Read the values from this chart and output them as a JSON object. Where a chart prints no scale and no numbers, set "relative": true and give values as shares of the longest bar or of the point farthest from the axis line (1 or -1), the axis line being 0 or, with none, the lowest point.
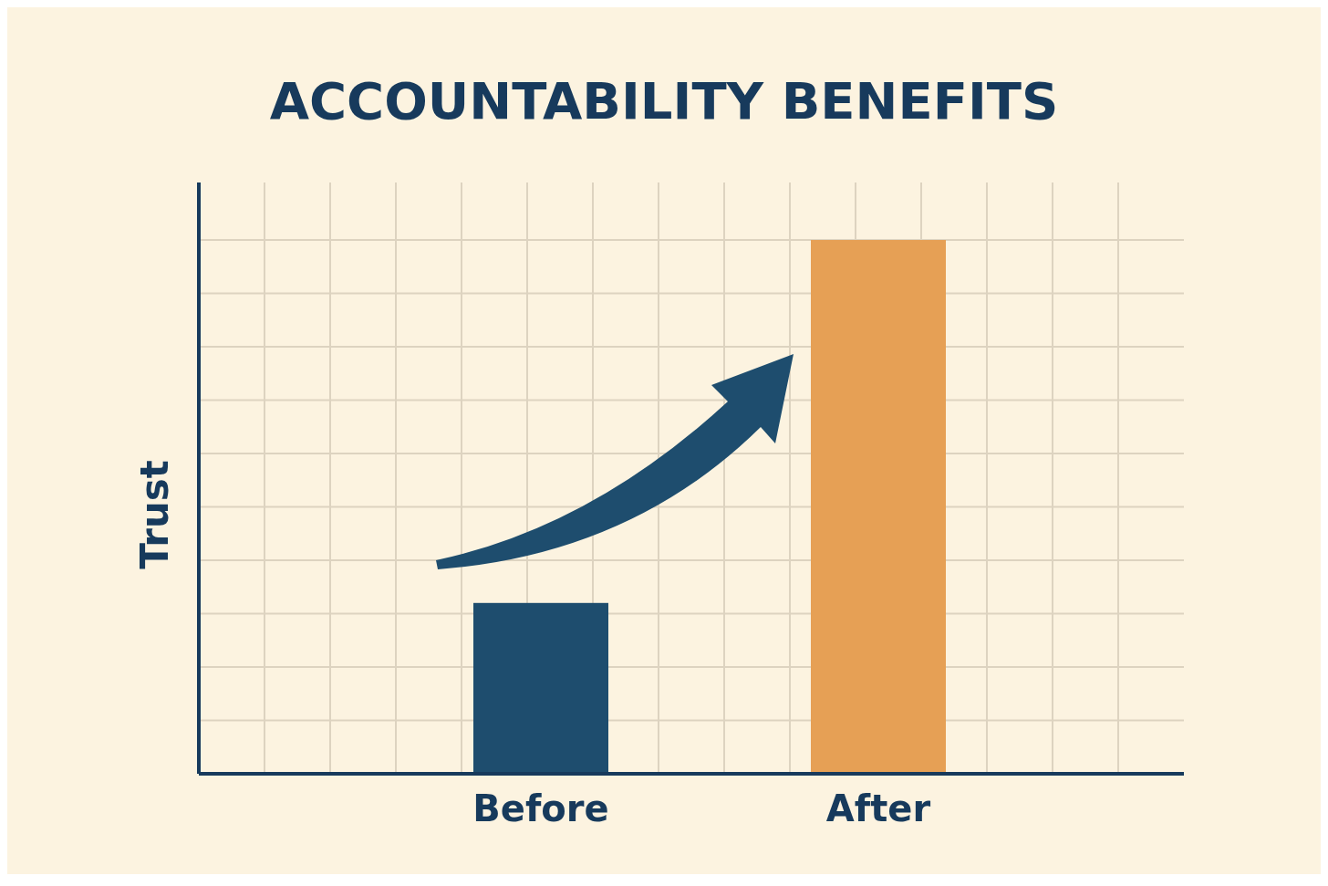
{
  "chart_data": {
    "type": "bar",
    "title": "ACCOUNTABILITY BENEFITS",
    "ylabel": "Trust",
    "categories": [
      "Before",
      "After"
    ],
    "values": [
      0.32,
      1
    ],
    "colors": [
      "#1e4d6e",
      "#e6a055"
    ],
    "relative": true,
    "grid": true
  }
}
